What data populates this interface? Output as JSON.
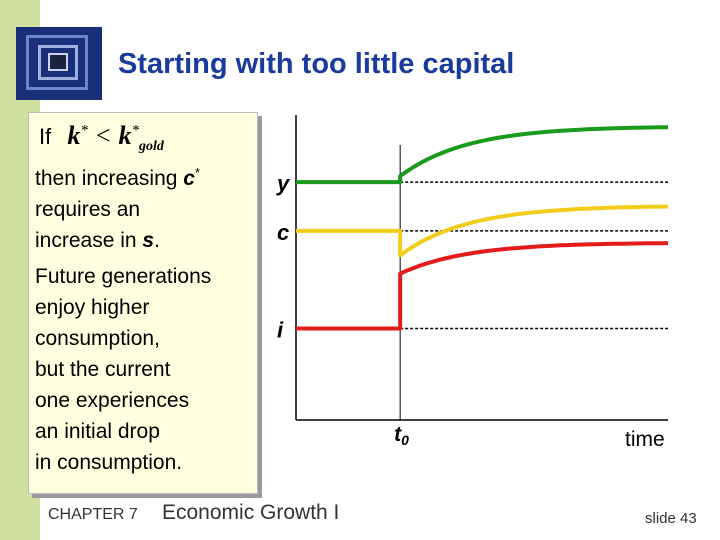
{
  "title": "Starting with too little capital",
  "condition": {
    "prefix": "If",
    "lhs_symbol": "k",
    "lhs_superscript": "*",
    "operator": "<",
    "rhs_symbol": "k",
    "rhs_superscript": "*",
    "rhs_subscript": "gold"
  },
  "paragraph_1": {
    "line_1_text": "then increasing ",
    "line_1_symbol": "c",
    "line_1_superscript": "*",
    "line_2": "requires an",
    "line_3_text": "increase in ",
    "line_3_symbol": "s",
    "line_3_end": "."
  },
  "paragraph_2": [
    "Future generations",
    "enjoy higher",
    "consumption,",
    "but the current",
    "one experiences",
    "an initial drop",
    "in consumption."
  ],
  "chart_data": {
    "type": "line",
    "x_ticks": {
      "t0_main": "t",
      "t0_sub": "0"
    },
    "xlabel": "time",
    "series": [
      {
        "name": "y",
        "color": "#1a9a1a",
        "before": 0.78,
        "after_start": 0.8,
        "after_end": 0.96,
        "jump": 0.0
      },
      {
        "name": "c",
        "color": "#f2cc1b",
        "before": 0.62,
        "after_start": 0.54,
        "after_end": 0.7,
        "jump": 0.0
      },
      {
        "name": "i",
        "color": "#e31b1b",
        "before": 0.3,
        "after_start": 0.48,
        "after_end": 0.58,
        "jump": 0.0
      }
    ],
    "shock_x": 0.28,
    "dotted_color": "#000000"
  },
  "footer": {
    "chapter": "CHAPTER 7",
    "topic": "Economic Growth I",
    "slide": "slide 43"
  },
  "colors": {
    "title": "#1b3b9c",
    "left_band": "#cfe0a0",
    "text_box": "#ffffe0"
  }
}
